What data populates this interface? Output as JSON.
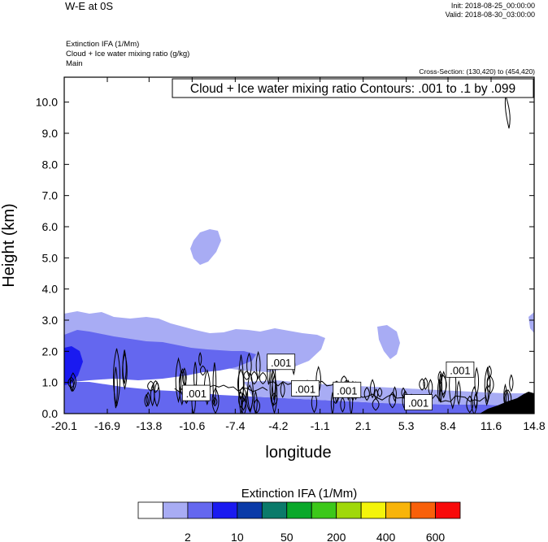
{
  "header": {
    "title": "W-E at 0S",
    "init": "Init: 2018-08-25_00:00:00",
    "valid": "Valid: 2018-08-30_03:00:00",
    "fields": [
      "Extinction IFA   (1/Mm)",
      "Cloud + Ice water mixing ratio   (g/kg)",
      "Main"
    ],
    "cross_section": "Cross-Section: (130,420) to (454,420)"
  },
  "chart_data": {
    "type": "heatmap",
    "title": "W-E at 0S",
    "xlabel": "longitude",
    "ylabel": "Height (km)",
    "xlim": [
      -20.1,
      14.8
    ],
    "ylim": [
      0.0,
      10.8
    ],
    "x_ticks": [
      "-20.1",
      "-16.9",
      "-13.8",
      "-10.6",
      "-7.4",
      "-4.2",
      "-1.1",
      "2.1",
      "5.3",
      "8.4",
      "11.6",
      "14.8"
    ],
    "x_tick_values": [
      -20.1,
      -16.9,
      -13.8,
      -10.6,
      -7.4,
      -4.2,
      -1.1,
      2.1,
      5.3,
      8.4,
      11.6,
      14.8
    ],
    "y_ticks": [
      "0.0",
      "1.0",
      "2.0",
      "3.0",
      "4.0",
      "5.0",
      "6.0",
      "7.0",
      "8.0",
      "9.0",
      "10.0"
    ],
    "y_tick_values": [
      0,
      1,
      2,
      3,
      4,
      5,
      6,
      7,
      8,
      9,
      10
    ],
    "contour_info": "Cloud + Ice water mixing ratio Contours: .001 to .1 by .099",
    "contour_labels": [
      {
        "text": ".001",
        "x": -4.0,
        "y": 1.65
      },
      {
        "text": ".001",
        "x": -10.3,
        "y": 0.65
      },
      {
        "text": ".001",
        "x": -2.2,
        "y": 0.8
      },
      {
        "text": ".001",
        "x": 0.9,
        "y": 0.75
      },
      {
        "text": ".001",
        "x": 6.2,
        "y": 0.35
      },
      {
        "text": ".001",
        "x": 9.3,
        "y": 1.4
      }
    ],
    "colorbar": {
      "title": "Extinction IFA  (1/Mm)",
      "colors": [
        "#ffffff",
        "#a8acf4",
        "#6467ef",
        "#1a1af0",
        "#0a3aa8",
        "#0a7a6a",
        "#0aa82a",
        "#3cc81a",
        "#a0d80a",
        "#f4f40a",
        "#f8b40a",
        "#f8600a",
        "#f80a0a"
      ],
      "labels": [
        "2",
        "10",
        "50",
        "200",
        "400",
        "600"
      ],
      "label_boundaries": [
        1,
        2,
        3,
        4,
        5,
        6
      ]
    }
  }
}
